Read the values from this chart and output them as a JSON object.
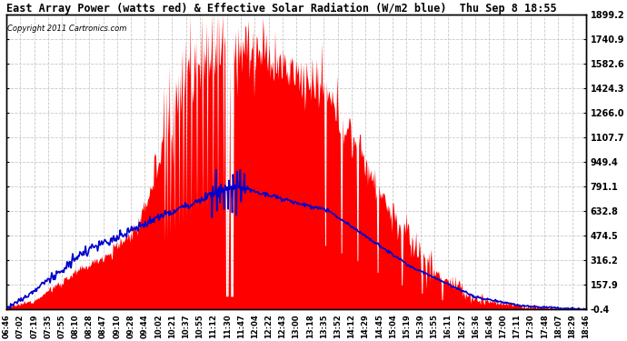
{
  "title": "East Array Power (watts red) & Effective Solar Radiation (W/m2 blue)  Thu Sep 8 18:55",
  "copyright": "Copyright 2011 Cartronics.com",
  "ylabel_right_ticks": [
    1899.2,
    1740.9,
    1582.6,
    1424.3,
    1266.0,
    1107.7,
    949.4,
    791.1,
    632.8,
    474.5,
    316.2,
    157.9,
    -0.4
  ],
  "ymin": -0.4,
  "ymax": 1899.2,
  "x_tick_labels": [
    "06:46",
    "07:02",
    "07:19",
    "07:35",
    "07:55",
    "08:10",
    "08:28",
    "08:47",
    "09:10",
    "09:28",
    "09:44",
    "10:02",
    "10:21",
    "10:37",
    "10:55",
    "11:12",
    "11:30",
    "11:47",
    "12:04",
    "12:22",
    "12:43",
    "13:00",
    "13:18",
    "13:35",
    "13:52",
    "14:12",
    "14:29",
    "14:45",
    "15:04",
    "15:19",
    "15:39",
    "15:55",
    "16:11",
    "16:27",
    "16:36",
    "16:46",
    "17:00",
    "17:11",
    "17:30",
    "17:48",
    "18:07",
    "18:29",
    "18:46"
  ],
  "background_color": "#ffffff",
  "plot_bg_color": "#ffffff",
  "grid_color": "#c8c8c8",
  "fill_color": "#ff0000",
  "line_color": "#0000cc"
}
